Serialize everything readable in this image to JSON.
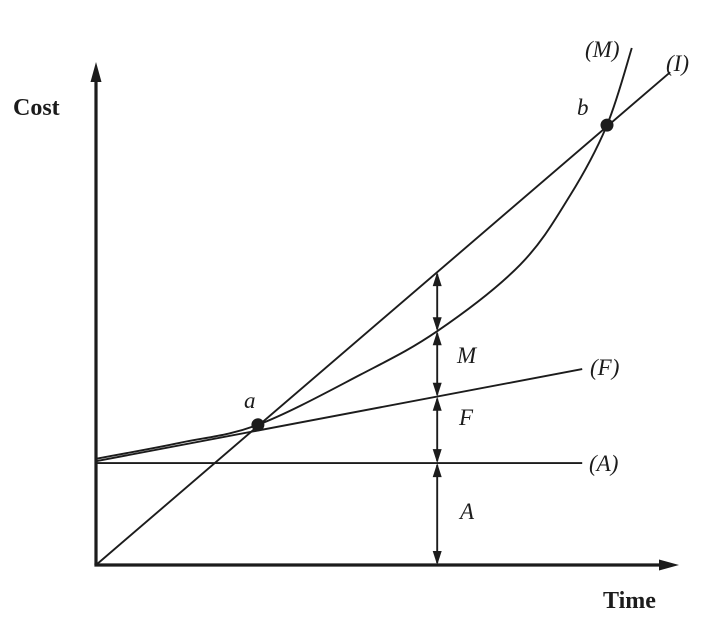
{
  "page": {
    "background": "#ffffff",
    "ink_color": "#1c1c1c"
  },
  "chart_data": {
    "type": "line",
    "title": "",
    "xlabel": "Time",
    "ylabel": "Cost",
    "x_range": [
      0,
      10.3
    ],
    "y_range": [
      0,
      10.4
    ],
    "grid": false,
    "ticks": "none",
    "legend": "inline-end-labels",
    "series": [
      {
        "name": "investment-line",
        "label": "(I)",
        "shape": "line",
        "points": [
          [
            0,
            0
          ],
          [
            10.18,
            10.16
          ]
        ]
      },
      {
        "name": "maintenance-curve",
        "label": "(M)",
        "shape": "smooth",
        "points": [
          [
            0,
            2.19
          ],
          [
            1.49,
            2.52
          ],
          [
            2.87,
            2.89
          ],
          [
            4.68,
            3.92
          ],
          [
            6.05,
            4.82
          ],
          [
            7.52,
            6.19
          ],
          [
            8.4,
            7.61
          ],
          [
            9.06,
            9.07
          ],
          [
            9.5,
            10.66
          ]
        ]
      },
      {
        "name": "fixed-cost-line",
        "label": "(F)",
        "shape": "line",
        "points": [
          [
            0,
            2.14
          ],
          [
            8.62,
            4.04
          ]
        ]
      },
      {
        "name": "constant-cost-line",
        "label": "(A)",
        "shape": "line",
        "points": [
          [
            0,
            2.1
          ],
          [
            8.62,
            2.1
          ]
        ]
      }
    ],
    "points": [
      {
        "label": "a",
        "x": 2.87,
        "y": 2.89
      },
      {
        "label": "b",
        "x": 9.06,
        "y": 9.07
      }
    ],
    "dimension": {
      "x": 6.05,
      "boundaries_y": [
        6.04,
        4.82,
        3.47,
        2.1,
        0
      ],
      "segments": [
        {
          "label": ""
        },
        {
          "label": "M"
        },
        {
          "label": "F"
        },
        {
          "label": "A"
        }
      ]
    }
  }
}
